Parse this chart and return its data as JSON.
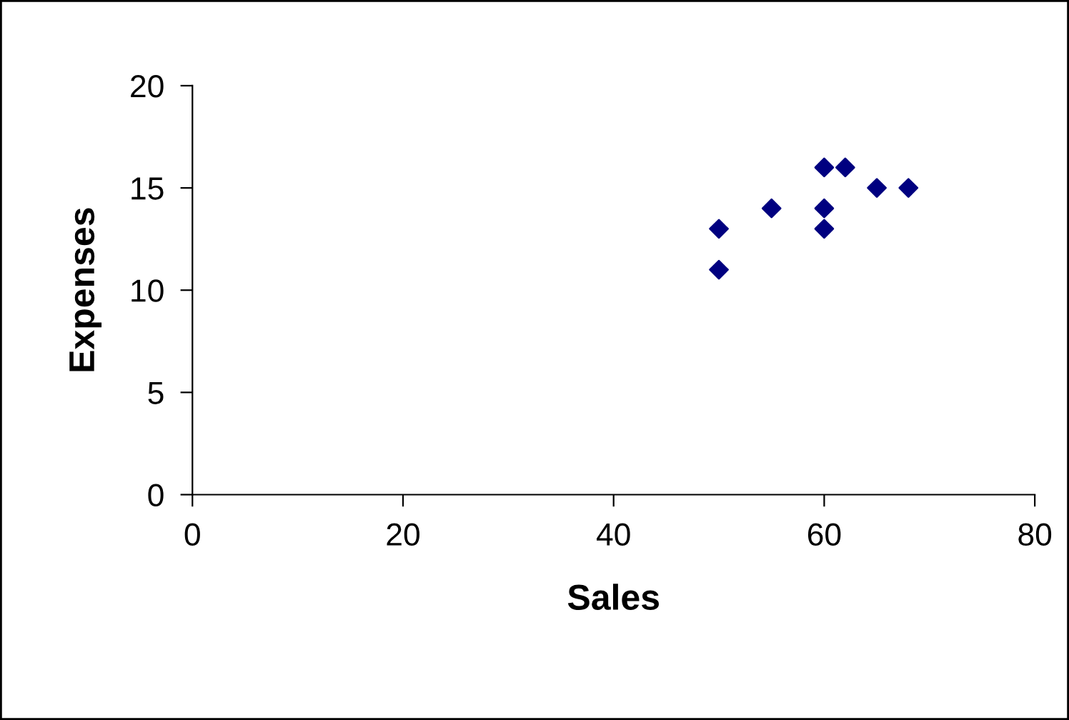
{
  "chart_data": {
    "type": "scatter",
    "xlabel": "Sales",
    "ylabel": "Expenses",
    "x": [
      50,
      50,
      55,
      60,
      60,
      60,
      62,
      65,
      68
    ],
    "series": [
      {
        "color": "#000080",
        "values": [
          11,
          13,
          14,
          13,
          14,
          16,
          16,
          15,
          15
        ]
      }
    ],
    "xlim": [
      0,
      80
    ],
    "xticks": [
      0,
      20,
      40,
      60,
      80
    ],
    "ylim": [
      0,
      20
    ],
    "yticks": [
      0,
      5,
      10,
      15,
      20
    ],
    "marker": "diamond",
    "grid": false,
    "legend": false
  }
}
